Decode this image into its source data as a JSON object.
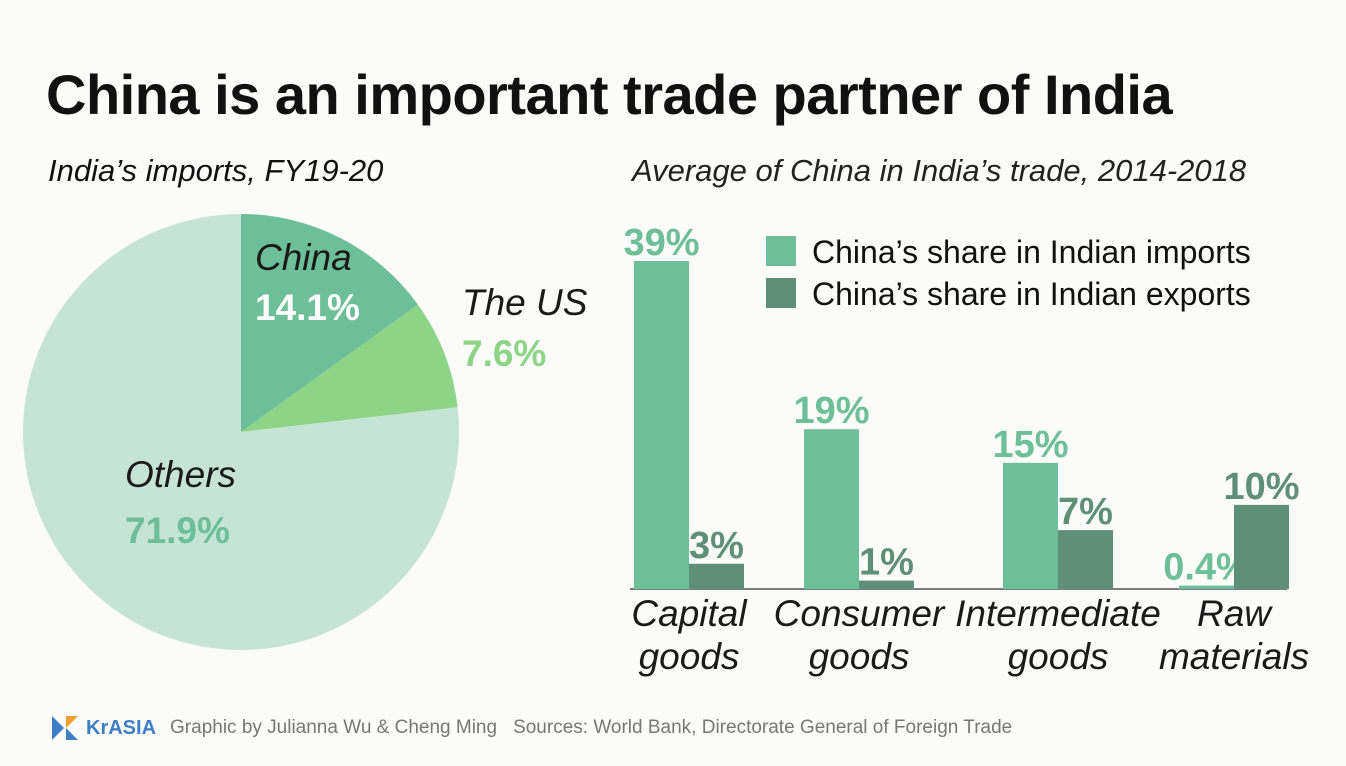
{
  "title": "China is an important trade partner of India",
  "chart_data": [
    {
      "type": "pie",
      "title": "India’s imports, FY19-20",
      "slices": [
        {
          "name": "China",
          "value": 14.1,
          "label": "14.1%",
          "color": "#6cbf98"
        },
        {
          "name": "The US",
          "value": 7.6,
          "label": "7.6%",
          "color": "#8dd487"
        },
        {
          "name": "Others",
          "value": 71.9,
          "label": "71.9%",
          "color": "#c5e4d6"
        }
      ]
    },
    {
      "type": "bar",
      "title": "Average of China in India’s trade, 2014-2018",
      "categories": [
        "Capital goods",
        "Consumer goods",
        "Intermediate goods",
        "Raw materials"
      ],
      "category_lines": [
        [
          "Capital",
          "goods"
        ],
        [
          "Consumer",
          "goods"
        ],
        [
          "Intermediate",
          "goods"
        ],
        [
          "Raw",
          "materials"
        ]
      ],
      "series": [
        {
          "name": "China’s share in Indian imports",
          "values": [
            39,
            19,
            15,
            0.4
          ],
          "labels": [
            "39%",
            "19%",
            "15%",
            "0.4%"
          ],
          "color": "#6cbf98"
        },
        {
          "name": "China’s share in Indian exports",
          "values": [
            3,
            1,
            7,
            10
          ],
          "labels": [
            "3%",
            "1%",
            "7%",
            "10%"
          ],
          "color": "#5e8f78"
        }
      ],
      "ylim": [
        0,
        39
      ],
      "legend": "top-right"
    }
  ],
  "footer": {
    "logo": "KrASIA",
    "credit": "Graphic by Julianna Wu & Cheng Ming",
    "sources": "Sources: World Bank, Directorate General of Foreign Trade"
  },
  "colors": {
    "imports": "#6cbf98",
    "exports": "#5e8f78",
    "pie_label_china": "#ffffff",
    "pie_label_us": "#8dd487",
    "pie_label_others": "#6cbf98"
  }
}
